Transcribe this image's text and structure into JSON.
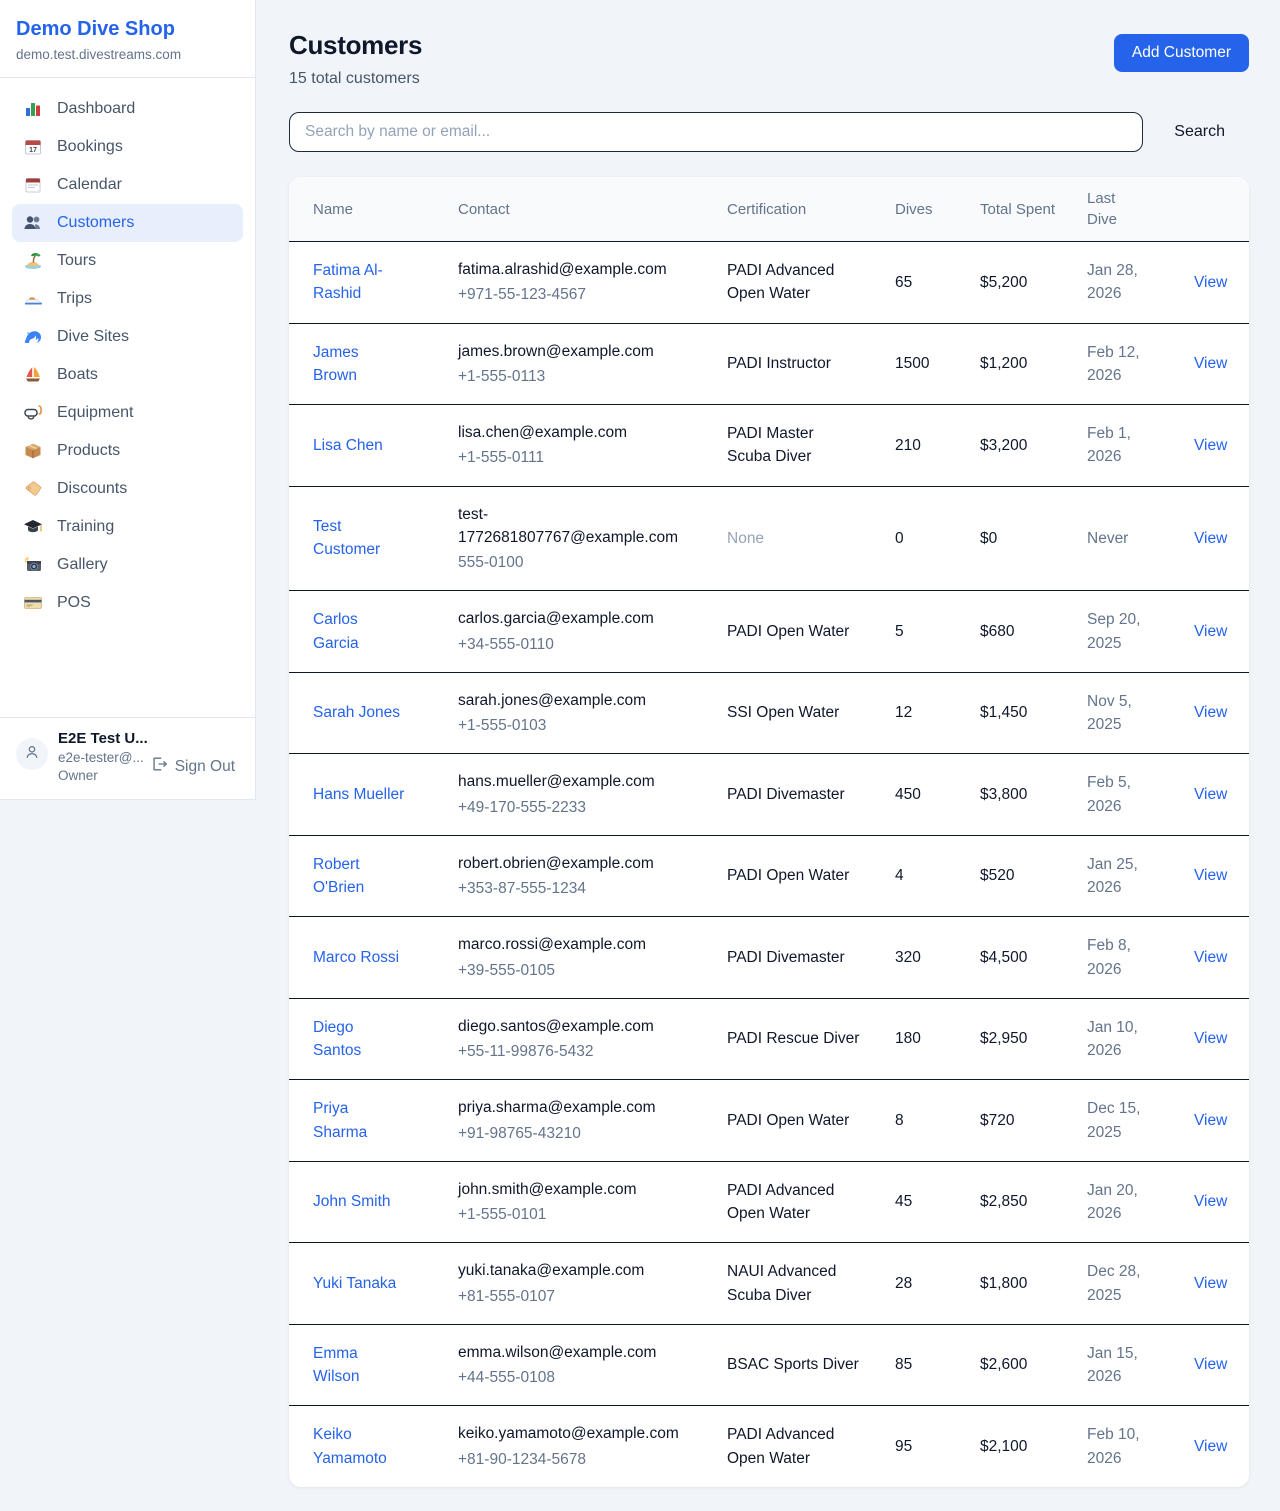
{
  "colors": {
    "accent": "#2563eb",
    "page_bg": "#f1f5f9",
    "row_divider": "#0f172a"
  },
  "sidebar": {
    "brand": {
      "title": "Demo Dive Shop",
      "domain": "demo.test.divestreams.com"
    },
    "items": [
      {
        "label": "Dashboard",
        "icon": "bar-chart-icon",
        "active": false
      },
      {
        "label": "Bookings",
        "icon": "bookings-calendar-icon",
        "active": false
      },
      {
        "label": "Calendar",
        "icon": "calendar-icon",
        "active": false
      },
      {
        "label": "Customers",
        "icon": "customers-icon",
        "active": true
      },
      {
        "label": "Tours",
        "icon": "island-icon",
        "active": false
      },
      {
        "label": "Trips",
        "icon": "speedboat-icon",
        "active": false
      },
      {
        "label": "Dive Sites",
        "icon": "wave-icon",
        "active": false
      },
      {
        "label": "Boats",
        "icon": "sailboat-icon",
        "active": false
      },
      {
        "label": "Equipment",
        "icon": "diving-mask-icon",
        "active": false
      },
      {
        "label": "Products",
        "icon": "package-icon",
        "active": false
      },
      {
        "label": "Discounts",
        "icon": "tag-icon",
        "active": false
      },
      {
        "label": "Training",
        "icon": "graduation-cap-icon",
        "active": false
      },
      {
        "label": "Gallery",
        "icon": "camera-icon",
        "active": false
      },
      {
        "label": "POS",
        "icon": "credit-card-icon",
        "active": false
      }
    ],
    "user": {
      "name": "E2E Test U...",
      "email": "e2e-tester@...",
      "role": "Owner",
      "sign_out_label": "Sign Out"
    }
  },
  "header": {
    "title": "Customers",
    "subtitle": "15 total customers",
    "add_button_label": "Add Customer"
  },
  "search": {
    "placeholder": "Search by name or email...",
    "value": "",
    "button_label": "Search"
  },
  "table": {
    "columns": [
      "Name",
      "Contact",
      "Certification",
      "Dives",
      "Total Spent",
      "Last Dive",
      ""
    ],
    "view_label": "View",
    "rows": [
      {
        "name": "Fatima Al-Rashid",
        "email": "fatima.alrashid@example.com",
        "phone": "+971-55-123-4567",
        "certification": "PADI Advanced Open Water",
        "dives": "65",
        "total_spent": "$5,200",
        "last_dive": "Jan 28, 2026"
      },
      {
        "name": "James Brown",
        "email": "james.brown@example.com",
        "phone": "+1-555-0113",
        "certification": "PADI Instructor",
        "dives": "1500",
        "total_spent": "$1,200",
        "last_dive": "Feb 12, 2026"
      },
      {
        "name": "Lisa Chen",
        "email": "lisa.chen@example.com",
        "phone": "+1-555-0111",
        "certification": "PADI Master Scuba Diver",
        "dives": "210",
        "total_spent": "$3,200",
        "last_dive": "Feb 1, 2026"
      },
      {
        "name": "Test Customer",
        "email": "test-1772681807767@example.com",
        "phone": "555-0100",
        "certification": "None",
        "cert_muted": true,
        "dives": "0",
        "total_spent": "$0",
        "last_dive": "Never"
      },
      {
        "name": "Carlos Garcia",
        "email": "carlos.garcia@example.com",
        "phone": "+34-555-0110",
        "certification": "PADI Open Water",
        "dives": "5",
        "total_spent": "$680",
        "last_dive": "Sep 20, 2025"
      },
      {
        "name": "Sarah Jones",
        "email": "sarah.jones@example.com",
        "phone": "+1-555-0103",
        "certification": "SSI Open Water",
        "dives": "12",
        "total_spent": "$1,450",
        "last_dive": "Nov 5, 2025"
      },
      {
        "name": "Hans Mueller",
        "email": "hans.mueller@example.com",
        "phone": "+49-170-555-2233",
        "certification": "PADI Divemaster",
        "dives": "450",
        "total_spent": "$3,800",
        "last_dive": "Feb 5, 2026"
      },
      {
        "name": "Robert O'Brien",
        "email": "robert.obrien@example.com",
        "phone": "+353-87-555-1234",
        "certification": "PADI Open Water",
        "dives": "4",
        "total_spent": "$520",
        "last_dive": "Jan 25, 2026"
      },
      {
        "name": "Marco Rossi",
        "email": "marco.rossi@example.com",
        "phone": "+39-555-0105",
        "certification": "PADI Divemaster",
        "dives": "320",
        "total_spent": "$4,500",
        "last_dive": "Feb 8, 2026"
      },
      {
        "name": "Diego Santos",
        "email": "diego.santos@example.com",
        "phone": "+55-11-99876-5432",
        "certification": "PADI Rescue Diver",
        "dives": "180",
        "total_spent": "$2,950",
        "last_dive": "Jan 10, 2026"
      },
      {
        "name": "Priya Sharma",
        "email": "priya.sharma@example.com",
        "phone": "+91-98765-43210",
        "certification": "PADI Open Water",
        "dives": "8",
        "total_spent": "$720",
        "last_dive": "Dec 15, 2025"
      },
      {
        "name": "John Smith",
        "email": "john.smith@example.com",
        "phone": "+1-555-0101",
        "certification": "PADI Advanced Open Water",
        "dives": "45",
        "total_spent": "$2,850",
        "last_dive": "Jan 20, 2026"
      },
      {
        "name": "Yuki Tanaka",
        "email": "yuki.tanaka@example.com",
        "phone": "+81-555-0107",
        "certification": "NAUI Advanced Scuba Diver",
        "dives": "28",
        "total_spent": "$1,800",
        "last_dive": "Dec 28, 2025"
      },
      {
        "name": "Emma Wilson",
        "email": "emma.wilson@example.com",
        "phone": "+44-555-0108",
        "certification": "BSAC Sports Diver",
        "dives": "85",
        "total_spent": "$2,600",
        "last_dive": "Jan 15, 2026"
      },
      {
        "name": "Keiko Yamamoto",
        "email": "keiko.yamamoto@example.com",
        "phone": "+81-90-1234-5678",
        "certification": "PADI Advanced Open Water",
        "dives": "95",
        "total_spent": "$2,100",
        "last_dive": "Feb 10, 2026"
      }
    ]
  }
}
